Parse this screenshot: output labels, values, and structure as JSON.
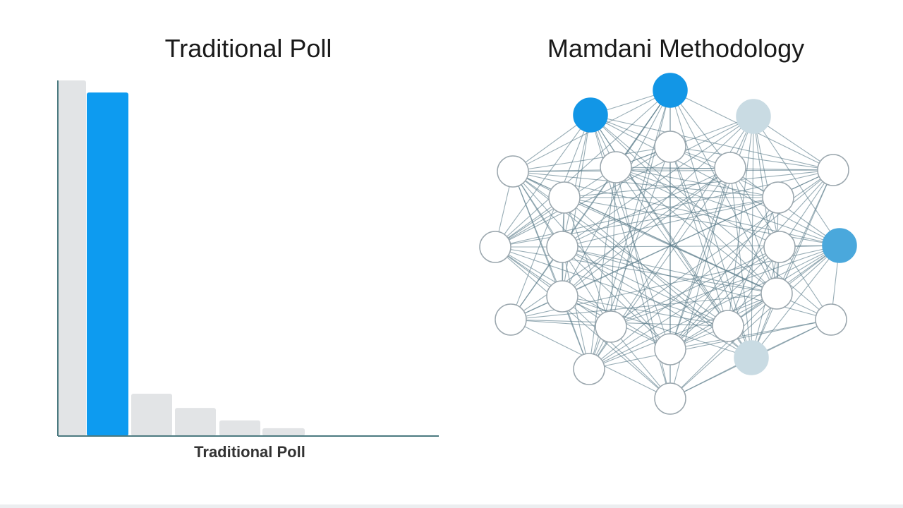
{
  "left_title": "Traditional Poll",
  "right_title": "Mamdani Methodology",
  "chart_data": {
    "type": "bar",
    "title": "Traditional Poll",
    "xlabel": "Traditional Poll",
    "ylabel": "",
    "categories": [
      "",
      "",
      "",
      "",
      "",
      ""
    ],
    "values": [
      100,
      96.6,
      11.9,
      7.9,
      4.4,
      2.2
    ],
    "ylim": [
      0,
      100
    ],
    "grid": false,
    "bar_colors": [
      "#e2e4e6",
      "#0d9bf0",
      "#e2e4e6",
      "#e2e4e6",
      "#e2e4e6",
      "#e2e4e6"
    ]
  },
  "network": {
    "title": "Mamdani Methodology",
    "node_count": 24,
    "colors": {
      "edge": "#5f7f8e",
      "node_fill": "#ffffff",
      "node_stroke": "#9aa6ad",
      "highlight_strong": "#1296e6",
      "highlight_medium": "#4aa8dc",
      "highlight_light": "#c9dbe3"
    }
  },
  "colors": {
    "axis": "#4b7a80",
    "title": "#1a1a1a"
  }
}
